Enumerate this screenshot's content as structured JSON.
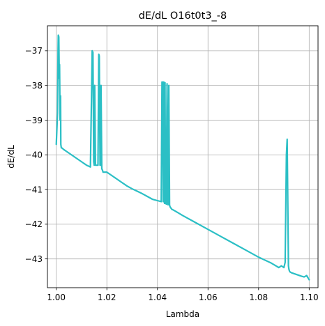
{
  "chart_data": {
    "type": "line",
    "title": "dE/dL O16t0t3_-8",
    "xlabel": "Lambda",
    "ylabel": "dE/dL",
    "xlim": [
      0.9965,
      1.1035
    ],
    "ylim": [
      -43.83,
      -36.28
    ],
    "xticks": [
      1.0,
      1.02,
      1.04,
      1.06,
      1.08,
      1.1
    ],
    "xtick_labels": [
      "1.00",
      "1.02",
      "1.04",
      "1.06",
      "1.08",
      "1.10"
    ],
    "yticks": [
      -37,
      -38,
      -39,
      -40,
      -41,
      -42,
      -43
    ],
    "ytick_labels": [
      "−37",
      "−38",
      "−39",
      "−40",
      "−41",
      "−42",
      "−43"
    ],
    "grid": true,
    "series": [
      {
        "color": "#2bbfc5",
        "x": [
          1.0,
          1.0005,
          1.0007,
          1.0008,
          1.001,
          1.0012,
          1.0013,
          1.0015,
          1.0017,
          1.0018,
          1.002,
          1.0022,
          1.003,
          1.004,
          1.006,
          1.008,
          1.01,
          1.012,
          1.0135,
          1.014,
          1.0142,
          1.0145,
          1.0148,
          1.015,
          1.0152,
          1.0155,
          1.016,
          1.0165,
          1.0168,
          1.017,
          1.0173,
          1.0175,
          1.0177,
          1.018,
          1.0183,
          1.0185,
          1.019,
          1.02,
          1.021,
          1.022,
          1.024,
          1.026,
          1.028,
          1.03,
          1.032,
          1.034,
          1.036,
          1.038,
          1.04,
          1.0415,
          1.0418,
          1.042,
          1.0423,
          1.0425,
          1.0428,
          1.043,
          1.0432,
          1.0435,
          1.0438,
          1.044,
          1.0442,
          1.0445,
          1.0448,
          1.045,
          1.0452,
          1.0455,
          1.0457,
          1.046,
          1.047,
          1.05,
          1.055,
          1.06,
          1.065,
          1.07,
          1.075,
          1.08,
          1.085,
          1.088,
          1.089,
          1.09,
          1.0905,
          1.091,
          1.0913,
          1.0915,
          1.0918,
          1.092,
          1.0922,
          1.0925,
          1.093,
          1.095,
          1.097,
          1.098,
          1.099,
          1.1
        ],
        "y": [
          -39.7,
          -38.8,
          -37.0,
          -36.55,
          -36.6,
          -37.8,
          -37.4,
          -39.0,
          -38.3,
          -39.7,
          -39.8,
          -39.8,
          -39.85,
          -39.9,
          -40.0,
          -40.1,
          -40.2,
          -40.3,
          -40.35,
          -38.0,
          -37.0,
          -37.05,
          -40.2,
          -40.3,
          -38.0,
          -40.3,
          -40.3,
          -40.3,
          -37.1,
          -37.15,
          -40.3,
          -40.3,
          -38.0,
          -40.4,
          -40.45,
          -40.5,
          -40.5,
          -40.5,
          -40.55,
          -40.6,
          -40.7,
          -40.8,
          -40.9,
          -40.98,
          -41.05,
          -41.12,
          -41.2,
          -41.28,
          -41.32,
          -41.35,
          -37.9,
          -37.9,
          -41.35,
          -37.9,
          -41.4,
          -37.92,
          -41.4,
          -41.42,
          -37.95,
          -41.42,
          -41.44,
          -38.0,
          -41.45,
          -41.5,
          -41.52,
          -41.55,
          -41.57,
          -41.58,
          -41.62,
          -41.75,
          -41.95,
          -42.15,
          -42.35,
          -42.55,
          -42.75,
          -42.95,
          -43.12,
          -43.25,
          -43.2,
          -43.25,
          -43.1,
          -40.0,
          -39.55,
          -41.0,
          -43.2,
          -43.3,
          -43.35,
          -43.38,
          -43.4,
          -43.45,
          -43.5,
          -43.52,
          -43.48,
          -43.6
        ]
      }
    ]
  }
}
